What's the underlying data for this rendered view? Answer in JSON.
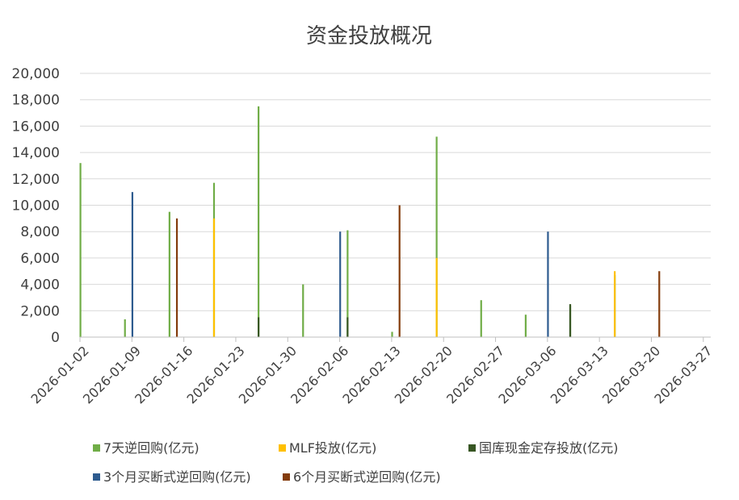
{
  "chart_data": {
    "type": "bar",
    "title": "资金投放概况",
    "xlabel": "",
    "ylabel": "",
    "ylim": [
      0,
      20000
    ],
    "yticks": [
      "0",
      "2,000",
      "4,000",
      "6,000",
      "8,000",
      "10,000",
      "12,000",
      "14,000",
      "16,000",
      "18,000",
      "20,000"
    ],
    "x_range": [
      "2026-01-02",
      "2026-03-28"
    ],
    "x_tick_labels": [
      "2026-01-02",
      "2026-01-09",
      "2026-01-16",
      "2026-01-23",
      "2026-01-30",
      "2026-02-06",
      "2026-02-13",
      "2026-02-20",
      "2026-02-27",
      "2026-03-06",
      "2026-03-13",
      "2026-03-20",
      "2026-03-27"
    ],
    "grid": true,
    "legend_position": "bottom",
    "series": [
      {
        "name": "7天逆回购(亿元)",
        "color": "#70ad47",
        "points": [
          {
            "date": "2026-01-02",
            "value": 13200
          },
          {
            "date": "2026-01-08",
            "value": 1350
          },
          {
            "date": "2026-01-14",
            "value": 9500
          },
          {
            "date": "2026-01-20",
            "value": 11700
          },
          {
            "date": "2026-01-26",
            "value": 17500
          },
          {
            "date": "2026-02-01",
            "value": 4000
          },
          {
            "date": "2026-02-07",
            "value": 8100
          },
          {
            "date": "2026-02-13",
            "value": 400
          },
          {
            "date": "2026-02-19",
            "value": 15200
          },
          {
            "date": "2026-02-25",
            "value": 2800
          },
          {
            "date": "2026-03-03",
            "value": 1700
          },
          {
            "date": "2026-03-09",
            "value": 2400
          },
          {
            "date": "2026-03-15",
            "value": 4700
          }
        ]
      },
      {
        "name": "MLF投放(亿元)",
        "color": "#ffc000",
        "points": [
          {
            "date": "2026-01-20",
            "value": 9000
          },
          {
            "date": "2026-02-19",
            "value": 6000
          },
          {
            "date": "2026-03-15",
            "value": 5000
          }
        ]
      },
      {
        "name": "国库现金定存投放(亿元)",
        "color": "#375623",
        "points": [
          {
            "date": "2026-01-26",
            "value": 1500
          },
          {
            "date": "2026-02-07",
            "value": 1500
          },
          {
            "date": "2026-03-09",
            "value": 2500
          }
        ]
      },
      {
        "name": "3个月买断式逆回购(亿元)",
        "color": "#2e5b8f",
        "points": [
          {
            "date": "2026-01-09",
            "value": 11000
          },
          {
            "date": "2026-02-06",
            "value": 8000
          },
          {
            "date": "2026-03-06",
            "value": 8000
          }
        ]
      },
      {
        "name": "6个月买断式逆回购(亿元)",
        "color": "#843c0c",
        "points": [
          {
            "date": "2026-01-15",
            "value": 9000
          },
          {
            "date": "2026-02-14",
            "value": 10000
          },
          {
            "date": "2026-03-21",
            "value": 5000
          }
        ]
      }
    ]
  }
}
